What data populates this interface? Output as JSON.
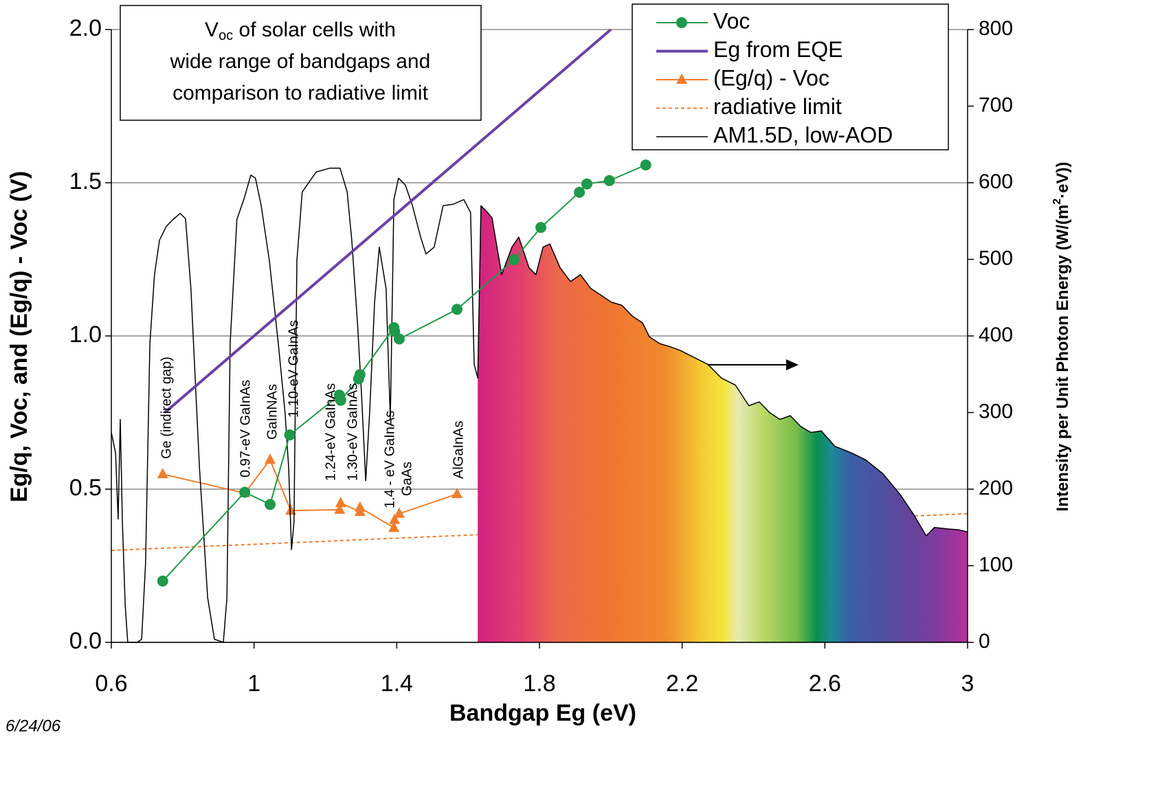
{
  "chart_data": {
    "type": "line",
    "title": [
      [
        "V",
        "oc",
        " of solar cells with"
      ],
      [
        "wide range of bandgaps and"
      ],
      [
        "comparison to radiative limit"
      ]
    ],
    "x_label": "Bandgap Eg  (eV)",
    "y_label": "Eg/q, Voc, and (Eg/q) - Voc  (V)",
    "y2_label": [
      "Intensity per Unit Photon Energy  (W/(m",
      "2",
      "·eV))"
    ],
    "date": "6/24/06",
    "xlim": [
      0.6,
      3
    ],
    "xticks": [
      0.6,
      1,
      1.4,
      1.8,
      2.2,
      2.6,
      3
    ],
    "ylim": [
      0,
      2
    ],
    "yticks": [
      {
        "value": 0,
        "label": "0.0"
      },
      0.5,
      {
        "value": 1,
        "label": "1.0"
      },
      1.5,
      {
        "value": 2,
        "label": "2.0"
      }
    ],
    "y2lim": [
      0,
      800
    ],
    "y2ticks": [
      0,
      100,
      200,
      300,
      400,
      500,
      600,
      700,
      800
    ],
    "grid": true,
    "legend": "top-right",
    "annotations": [
      "Ge  (indirect gap)",
      "0.97-eV GaInAs",
      "GaInNAs",
      "1.10-eV GaInAs",
      "1.24-eV GaInAs",
      "1.30-eV GaInAs",
      "1.4 - eV GaInAs",
      "GaAs",
      "AlGaInAs"
    ],
    "series": [
      {
        "name": "Voc",
        "color": "#1e9a4a",
        "marker": "circle",
        "x": [
          0.744,
          0.974,
          1.045,
          1.1,
          1.239,
          1.243,
          1.293,
          1.297,
          1.392,
          1.394,
          1.407,
          1.569,
          1.729,
          1.804,
          1.912,
          1.933,
          1.996,
          2.098
        ],
        "values": [
          0.2,
          0.49,
          0.45,
          0.677,
          0.807,
          0.79,
          0.86,
          0.874,
          1.027,
          1.015,
          0.99,
          1.087,
          1.249,
          1.354,
          1.469,
          1.496,
          1.507,
          1.558
        ]
      },
      {
        "name": "Eg from EQE",
        "color": "#6843a5",
        "x": [
          0.75,
          2.0
        ],
        "values": [
          0.75,
          2.0
        ]
      },
      {
        "name": "(Eg/q) - Voc",
        "color": "#f07d2b",
        "marker": "triangle",
        "x": [
          0.744,
          0.974,
          1.045,
          1.103,
          1.24,
          1.243,
          1.297,
          1.297,
          1.392,
          1.394,
          1.407,
          1.569
        ],
        "values": [
          0.549,
          0.487,
          0.596,
          0.43,
          0.433,
          0.455,
          0.426,
          0.44,
          0.374,
          0.4,
          0.42,
          0.484
        ]
      },
      {
        "name": "radiative limit",
        "color": "#f07d2b",
        "style": "dashed",
        "x": [
          0.6,
          3.0
        ],
        "values": [
          0.3,
          0.42
        ]
      },
      {
        "name": "AM1.5D, low-AOD",
        "color": "#000000",
        "axis": "y2",
        "x": [
          0.6,
          0.612,
          0.619,
          0.625,
          0.631,
          0.639,
          0.646,
          0.673,
          0.685,
          0.696,
          0.708,
          0.721,
          0.735,
          0.754,
          0.773,
          0.793,
          0.808,
          0.823,
          0.847,
          0.87,
          0.889,
          0.914,
          0.924,
          0.933,
          0.952,
          0.972,
          0.991,
          1.004,
          1.02,
          1.043,
          1.068,
          1.087,
          1.097,
          1.105,
          1.112,
          1.12,
          1.135,
          1.174,
          1.212,
          1.241,
          1.261,
          1.274,
          1.29,
          1.301,
          1.313,
          1.324,
          1.338,
          1.351,
          1.37,
          1.382,
          1.392,
          1.405,
          1.424,
          1.444,
          1.467,
          1.482,
          1.505,
          1.53,
          1.559,
          1.588,
          1.607,
          1.617,
          1.627,
          1.636,
          1.655,
          1.667,
          1.694,
          1.723,
          1.742,
          1.771,
          1.79,
          1.81,
          1.829,
          1.858,
          1.887,
          1.915,
          1.944,
          1.973,
          2.002,
          2.031,
          2.06,
          2.089,
          2.108,
          2.137,
          2.166,
          2.195,
          2.233,
          2.272,
          2.31,
          2.349,
          2.387,
          2.416,
          2.445,
          2.474,
          2.503,
          2.532,
          2.561,
          2.59,
          2.628,
          2.676,
          2.715,
          2.763,
          2.811,
          2.85,
          2.884,
          2.907,
          2.946,
          2.975,
          3.0
        ],
        "values": [
          274,
          247,
          161,
          291,
          157,
          48,
          0,
          0,
          4,
          103,
          390,
          480,
          525,
          543,
          552,
          560,
          553,
          462,
          229,
          58,
          4,
          0,
          58,
          390,
          552,
          579,
          610,
          606,
          570,
          498,
          390,
          300,
          229,
          121,
          157,
          498,
          588,
          614,
          619,
          619,
          588,
          525,
          417,
          327,
          211,
          300,
          444,
          516,
          462,
          291,
          578,
          606,
          597,
          570,
          529,
          507,
          516,
          570,
          572,
          578,
          561,
          363,
          345,
          570,
          561,
          554,
          480,
          516,
          529,
          489,
          480,
          516,
          520,
          489,
          471,
          480,
          462,
          453,
          444,
          440,
          426,
          417,
          399,
          390,
          386,
          381,
          372,
          363,
          345,
          336,
          309,
          314,
          300,
          291,
          296,
          282,
          274,
          276,
          256,
          247,
          238,
          220,
          193,
          166,
          139,
          150,
          148,
          147,
          144
        ]
      }
    ]
  }
}
